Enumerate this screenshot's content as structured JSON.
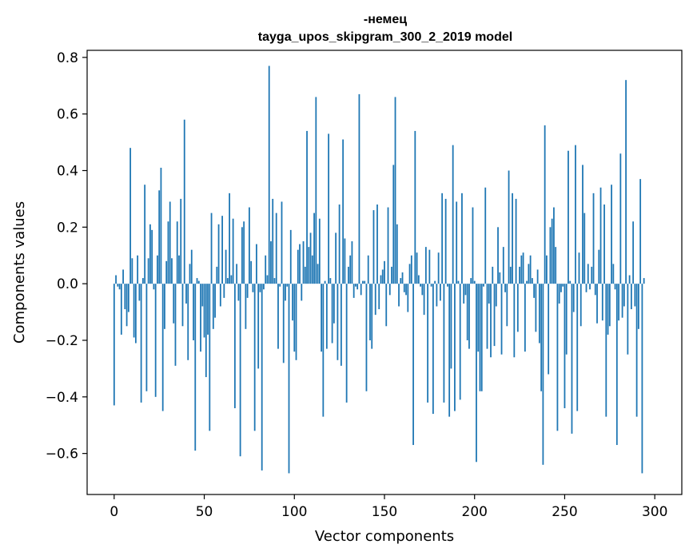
{
  "chart_data": {
    "type": "bar",
    "title_line1": "-немец",
    "title_line2": "tayga_upos_skipgram_300_2_2019 model",
    "xlabel": "Vector components",
    "ylabel": "Components values",
    "xlim": [
      -15,
      315
    ],
    "ylim": [
      -0.745,
      0.825
    ],
    "xticks": [
      0,
      50,
      100,
      150,
      200,
      250,
      300
    ],
    "xtick_labels": [
      "0",
      "50",
      "100",
      "150",
      "200",
      "250",
      "300"
    ],
    "yticks": [
      -0.6,
      -0.4,
      -0.2,
      0.0,
      0.2,
      0.4,
      0.6,
      0.8
    ],
    "ytick_labels": [
      "−0.6",
      "−0.4",
      "−0.2",
      "0.0",
      "0.2",
      "0.4",
      "0.6",
      "0.8"
    ],
    "bar_color": "#1f77b4",
    "values": [
      -0.43,
      0.03,
      -0.01,
      -0.02,
      -0.18,
      0.05,
      -0.09,
      -0.15,
      -0.1,
      0.48,
      0.09,
      -0.19,
      -0.21,
      0.1,
      -0.06,
      -0.42,
      0.02,
      0.35,
      -0.38,
      0.09,
      0.21,
      0.19,
      -0.02,
      -0.4,
      0.1,
      0.33,
      0.41,
      -0.45,
      -0.16,
      0.08,
      0.22,
      0.29,
      0.09,
      -0.14,
      -0.29,
      0.22,
      0.1,
      0.3,
      -0.15,
      0.58,
      -0.07,
      -0.27,
      0.07,
      0.12,
      -0.2,
      -0.59,
      0.02,
      0.01,
      -0.24,
      -0.08,
      -0.19,
      -0.33,
      -0.18,
      -0.52,
      0.25,
      -0.16,
      -0.12,
      0.06,
      0.21,
      -0.08,
      0.24,
      -0.05,
      0.12,
      0.02,
      0.32,
      0.03,
      0.23,
      -0.44,
      0.07,
      -0.06,
      -0.61,
      0.2,
      0.22,
      -0.16,
      -0.05,
      0.27,
      0.08,
      -0.03,
      -0.52,
      0.14,
      -0.3,
      -0.03,
      -0.66,
      -0.02,
      0.1,
      0.03,
      0.77,
      0.15,
      0.3,
      0.02,
      0.25,
      -0.23,
      -0.01,
      0.29,
      -0.28,
      -0.06,
      -0.01,
      -0.67,
      0.19,
      -0.13,
      -0.24,
      -0.27,
      0.12,
      0.14,
      -0.06,
      0.15,
      0.06,
      0.54,
      0.13,
      0.18,
      0.1,
      0.25,
      0.66,
      0.07,
      0.23,
      -0.24,
      -0.47,
      0.01,
      -0.23,
      0.53,
      0.02,
      -0.21,
      -0.14,
      0.18,
      -0.27,
      0.28,
      -0.29,
      0.51,
      0.16,
      -0.42,
      0.06,
      0.1,
      0.15,
      -0.05,
      -0.01,
      -0.02,
      0.67,
      -0.04,
      0.01,
      0.01,
      -0.38,
      0.1,
      -0.2,
      -0.23,
      0.26,
      -0.11,
      0.28,
      -0.09,
      0.03,
      0.05,
      0.08,
      -0.15,
      0.27,
      -0.04,
      0.06,
      0.42,
      0.66,
      0.21,
      -0.08,
      0.02,
      0.04,
      -0.03,
      -0.04,
      -0.1,
      0.07,
      0.1,
      -0.57,
      0.54,
      0.11,
      0.03,
      -0.01,
      -0.04,
      -0.11,
      0.13,
      -0.42,
      0.12,
      -0.01,
      -0.46,
      0.01,
      -0.08,
      0.11,
      -0.06,
      0.32,
      -0.42,
      0.3,
      -0.01,
      -0.47,
      -0.3,
      0.49,
      -0.45,
      0.29,
      0.01,
      -0.41,
      0.32,
      -0.07,
      -0.04,
      -0.2,
      -0.23,
      0.02,
      0.27,
      0.01,
      -0.63,
      -0.24,
      -0.38,
      -0.38,
      -0.01,
      0.34,
      -0.23,
      -0.07,
      -0.26,
      0.06,
      -0.22,
      -0.08,
      0.2,
      0.04,
      -0.25,
      0.13,
      -0.03,
      -0.15,
      0.4,
      0.06,
      0.32,
      -0.26,
      0.3,
      -0.17,
      0.06,
      0.1,
      0.11,
      -0.24,
      0.01,
      0.07,
      0.1,
      0.02,
      -0.05,
      -0.17,
      0.05,
      -0.21,
      -0.38,
      -0.64,
      0.56,
      0.1,
      -0.32,
      0.2,
      0.23,
      0.27,
      0.13,
      -0.52,
      -0.07,
      -0.03,
      -0.01,
      -0.44,
      -0.25,
      0.47,
      0.01,
      -0.53,
      -0.1,
      0.49,
      -0.45,
      0.11,
      -0.15,
      0.42,
      0.25,
      -0.03,
      0.07,
      -0.02,
      0.06,
      0.32,
      -0.04,
      -0.14,
      0.12,
      0.34,
      -0.13,
      0.28,
      -0.47,
      -0.18,
      -0.15,
      0.35,
      0.07,
      -0.02,
      -0.57,
      -0.13,
      0.46,
      -0.12,
      -0.08,
      0.72,
      -0.25,
      0.03,
      -0.09,
      0.22,
      -0.08,
      -0.47,
      -0.16,
      0.37,
      -0.67,
      0.02
    ]
  }
}
